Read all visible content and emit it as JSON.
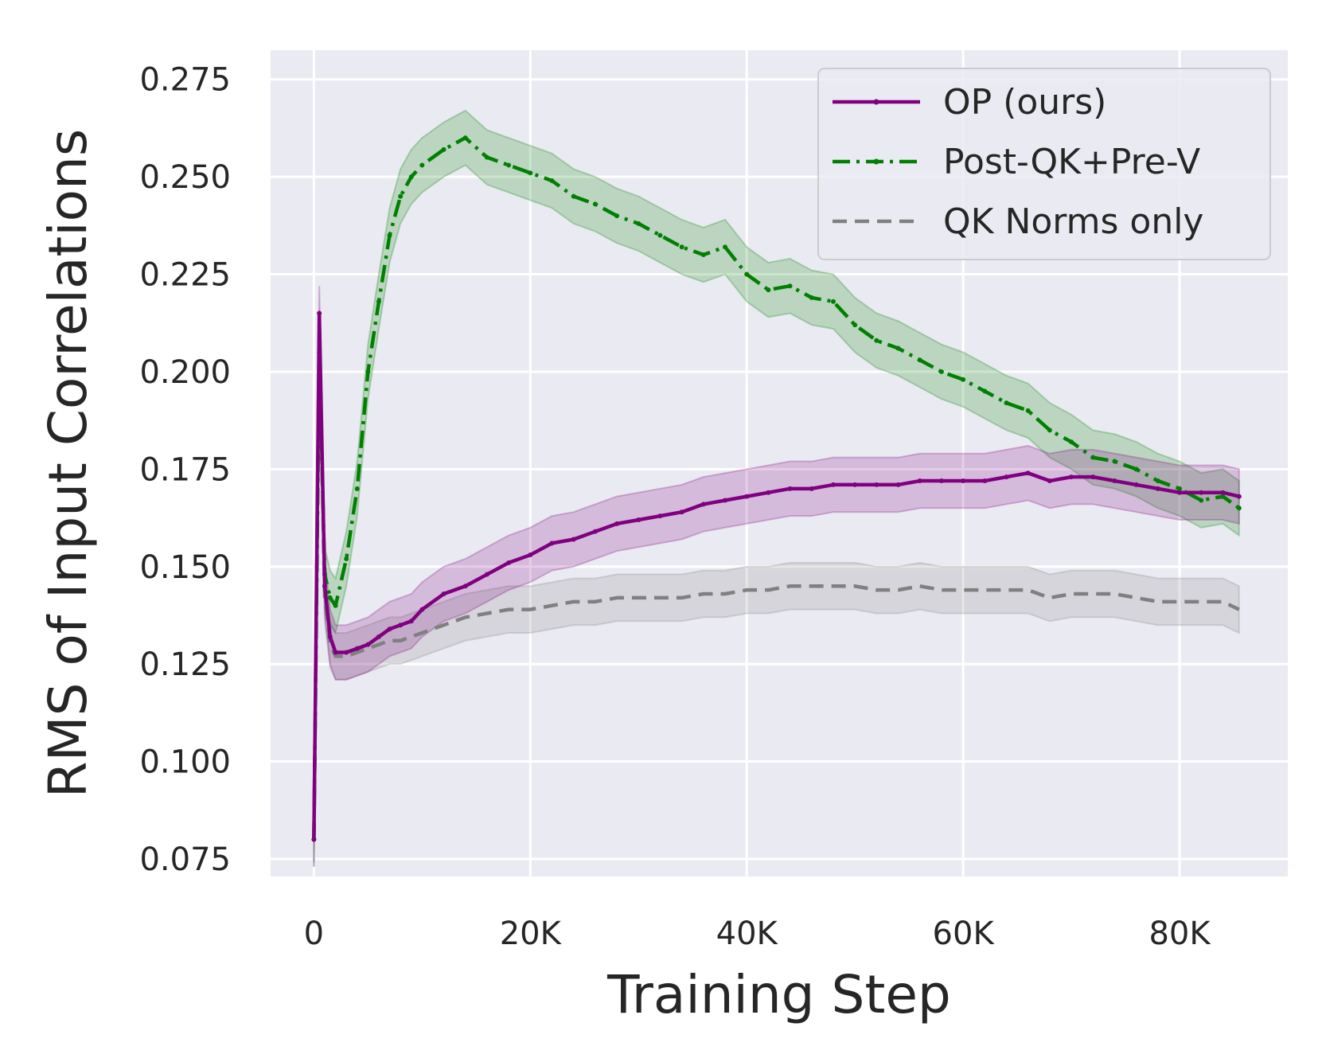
{
  "chart_data": {
    "type": "line",
    "title": "",
    "xlabel": "Training Step",
    "ylabel": "RMS of Input Correlations",
    "xlim": [
      -4000,
      90000
    ],
    "ylim": [
      0.0705,
      0.2825
    ],
    "xticks": [
      0,
      20000,
      40000,
      60000,
      80000
    ],
    "xtick_labels": [
      "0",
      "20K",
      "40K",
      "60K",
      "80K"
    ],
    "yticks": [
      0.075,
      0.1,
      0.125,
      0.15,
      0.175,
      0.2,
      0.225,
      0.25,
      0.275
    ],
    "ytick_labels": [
      "0.075",
      "0.100",
      "0.125",
      "0.150",
      "0.175",
      "0.200",
      "0.225",
      "0.250",
      "0.275"
    ],
    "grid": true,
    "legend_position": "top-right",
    "series": [
      {
        "name": "OP (ours)",
        "color": "#800080",
        "style": "solid",
        "band": 0.007,
        "x": [
          0,
          500,
          1000,
          1500,
          2000,
          3000,
          4000,
          5000,
          6000,
          7000,
          8000,
          9000,
          10000,
          12000,
          14000,
          16000,
          18000,
          20000,
          22000,
          24000,
          26000,
          28000,
          30000,
          32000,
          34000,
          36000,
          38000,
          40000,
          42000,
          44000,
          46000,
          48000,
          50000,
          52000,
          54000,
          56000,
          58000,
          60000,
          62000,
          64000,
          66000,
          68000,
          70000,
          72000,
          74000,
          76000,
          78000,
          80000,
          82000,
          84000,
          85500
        ],
        "y": [
          0.08,
          0.215,
          0.145,
          0.132,
          0.128,
          0.128,
          0.129,
          0.13,
          0.132,
          0.134,
          0.135,
          0.136,
          0.139,
          0.143,
          0.145,
          0.148,
          0.151,
          0.153,
          0.156,
          0.157,
          0.159,
          0.161,
          0.162,
          0.163,
          0.164,
          0.166,
          0.167,
          0.168,
          0.169,
          0.17,
          0.17,
          0.171,
          0.171,
          0.171,
          0.171,
          0.172,
          0.172,
          0.172,
          0.172,
          0.173,
          0.174,
          0.172,
          0.173,
          0.173,
          0.172,
          0.171,
          0.17,
          0.169,
          0.169,
          0.169,
          0.168
        ]
      },
      {
        "name": "Post-QK+Pre-V",
        "color": "#008000",
        "style": "dashdot",
        "band": 0.007,
        "x": [
          0,
          500,
          1000,
          1500,
          2000,
          3000,
          4000,
          5000,
          6000,
          7000,
          8000,
          9000,
          10000,
          12000,
          14000,
          16000,
          18000,
          20000,
          22000,
          24000,
          26000,
          28000,
          30000,
          32000,
          34000,
          36000,
          38000,
          40000,
          42000,
          44000,
          46000,
          48000,
          50000,
          52000,
          54000,
          56000,
          58000,
          60000,
          62000,
          64000,
          66000,
          68000,
          70000,
          72000,
          74000,
          76000,
          78000,
          80000,
          82000,
          84000,
          85500
        ],
        "y": [
          0.08,
          0.205,
          0.148,
          0.142,
          0.14,
          0.152,
          0.17,
          0.2,
          0.218,
          0.235,
          0.245,
          0.25,
          0.253,
          0.257,
          0.26,
          0.255,
          0.253,
          0.251,
          0.249,
          0.245,
          0.243,
          0.24,
          0.238,
          0.235,
          0.232,
          0.23,
          0.232,
          0.225,
          0.221,
          0.222,
          0.219,
          0.218,
          0.212,
          0.208,
          0.206,
          0.203,
          0.2,
          0.198,
          0.195,
          0.192,
          0.19,
          0.185,
          0.182,
          0.178,
          0.177,
          0.175,
          0.172,
          0.17,
          0.167,
          0.168,
          0.165
        ]
      },
      {
        "name": "QK Norms only",
        "color": "#808080",
        "style": "dashed",
        "band": 0.006,
        "x": [
          0,
          500,
          1000,
          1500,
          2000,
          3000,
          4000,
          5000,
          6000,
          7000,
          8000,
          9000,
          10000,
          12000,
          14000,
          16000,
          18000,
          20000,
          22000,
          24000,
          26000,
          28000,
          30000,
          32000,
          34000,
          36000,
          38000,
          40000,
          42000,
          44000,
          46000,
          48000,
          50000,
          52000,
          54000,
          56000,
          58000,
          60000,
          62000,
          64000,
          66000,
          68000,
          70000,
          72000,
          74000,
          76000,
          78000,
          80000,
          82000,
          84000,
          85500
        ],
        "y": [
          0.08,
          0.21,
          0.142,
          0.13,
          0.127,
          0.127,
          0.128,
          0.129,
          0.13,
          0.131,
          0.131,
          0.132,
          0.133,
          0.135,
          0.137,
          0.138,
          0.139,
          0.139,
          0.14,
          0.141,
          0.141,
          0.142,
          0.142,
          0.142,
          0.142,
          0.143,
          0.143,
          0.144,
          0.144,
          0.145,
          0.145,
          0.145,
          0.145,
          0.144,
          0.144,
          0.145,
          0.144,
          0.144,
          0.144,
          0.144,
          0.144,
          0.142,
          0.143,
          0.143,
          0.143,
          0.142,
          0.141,
          0.141,
          0.141,
          0.141,
          0.139
        ]
      }
    ]
  }
}
